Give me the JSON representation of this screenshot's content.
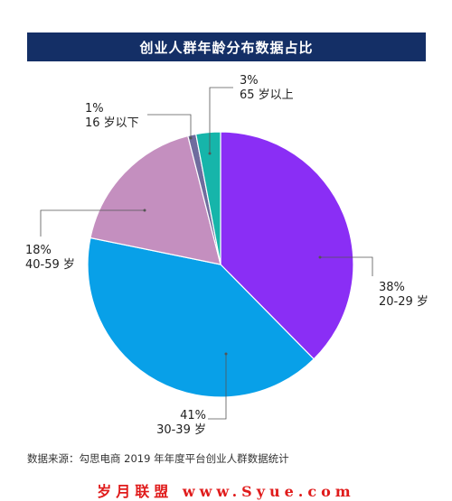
{
  "chart_data": {
    "type": "pie",
    "title": "创业人群年龄分布数据占比",
    "slices": [
      {
        "label": "20-29 岁",
        "value": 38,
        "value_label": "38%",
        "color": "#8a2ef5"
      },
      {
        "label": "30-39 岁",
        "value": 41,
        "value_label": "41%",
        "color": "#08a0e8"
      },
      {
        "label": "40-59 岁",
        "value": 18,
        "value_label": "18%",
        "color": "#c48fbf"
      },
      {
        "label": "16 岁以下",
        "value": 1,
        "value_label": "1%",
        "color": "#6f6c9e"
      },
      {
        "label": "65 岁以上",
        "value": 3,
        "value_label": "3%",
        "color": "#16b5aa"
      }
    ]
  },
  "source": "数据来源：勾思电商 2019 年年度平台创业人群数据统计",
  "watermark": "岁月联盟 www.Syue.com"
}
